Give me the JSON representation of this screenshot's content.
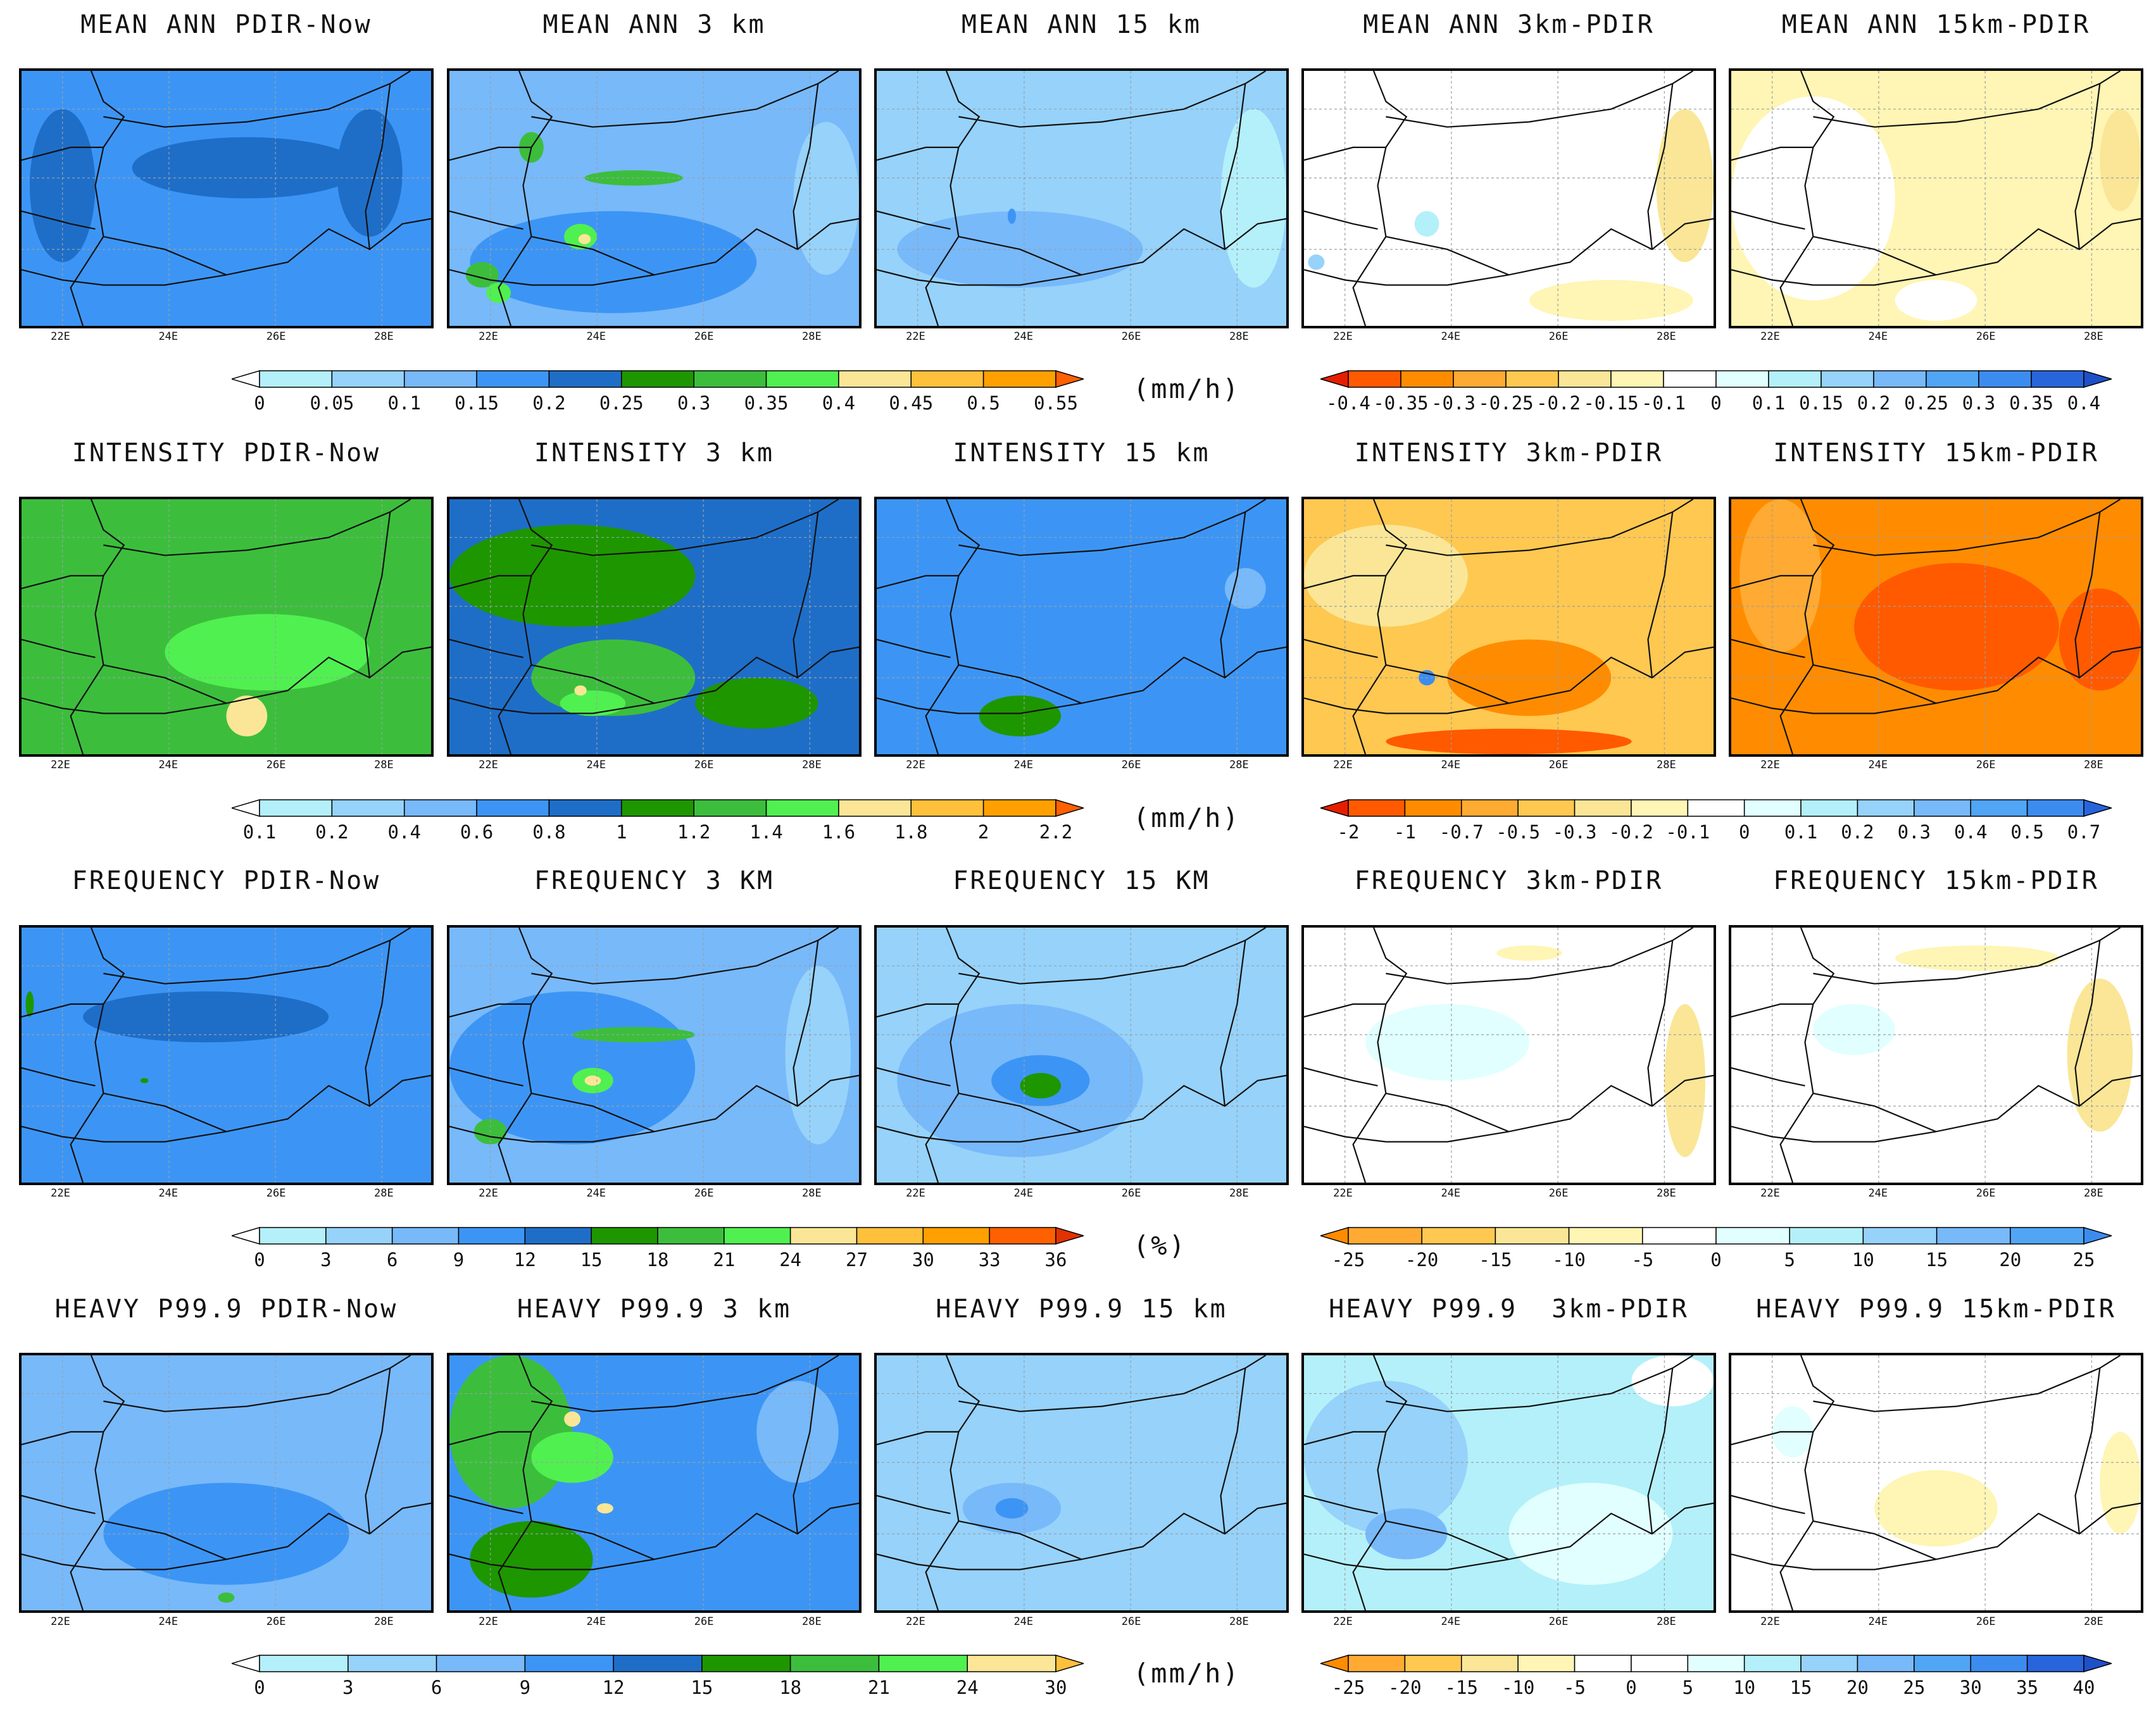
{
  "longitude_ticks": [
    "22E",
    "24E",
    "26E",
    "28E"
  ],
  "rows": [
    {
      "id": "mean",
      "titles": [
        "MEAN ANN PDIR-Now",
        "MEAN ANN 3 km",
        "MEAN ANN 15 km",
        "MEAN ANN 3km-PDIR",
        "MEAN ANN 15km-PDIR"
      ],
      "seq_scale": {
        "labels": [
          "0",
          "0.05",
          "0.1",
          "0.15",
          "0.2",
          "0.25",
          "0.3",
          "0.35",
          "0.4",
          "0.45",
          "0.5",
          "0.55"
        ],
        "colors": [
          "#ffffff",
          "#b4f0fa",
          "#96d2fa",
          "#78b9fa",
          "#3c95f5",
          "#1e6ec8",
          "#1e9600",
          "#3cbe3c",
          "#50f050",
          "#fae696",
          "#ffc03c",
          "#ffa000",
          "#ff6000"
        ]
      },
      "units": "(mm/h)",
      "diff_scale": {
        "labels": [
          "-0.4",
          "-0.35",
          "-0.3",
          "-0.25",
          "-0.2",
          "-0.15",
          "-0.1",
          "0",
          "0.1",
          "0.15",
          "0.2",
          "0.25",
          "0.3",
          "0.35",
          "0.4"
        ],
        "colors": [
          "#e61e00",
          "#ff5a00",
          "#ff8c00",
          "#ffaa32",
          "#ffc850",
          "#fae696",
          "#fff5b4",
          "#ffffff",
          "#e1ffff",
          "#b4f0fa",
          "#96d2fa",
          "#78b9fa",
          "#50a5f5",
          "#3c8cf0",
          "#2864dc",
          "#1e50c8"
        ]
      }
    },
    {
      "id": "intensity",
      "titles": [
        "INTENSITY PDIR-Now",
        "INTENSITY 3 km",
        "INTENSITY 15 km",
        "INTENSITY 3km-PDIR",
        "INTENSITY 15km-PDIR"
      ],
      "seq_scale": {
        "labels": [
          "0.1",
          "0.2",
          "0.4",
          "0.6",
          "0.8",
          "1",
          "1.2",
          "1.4",
          "1.6",
          "1.8",
          "2",
          "2.2"
        ],
        "colors": [
          "#ffffff",
          "#b4f0fa",
          "#96d2fa",
          "#78b9fa",
          "#3c95f5",
          "#1e6ec8",
          "#1e9600",
          "#3cbe3c",
          "#50f050",
          "#fae696",
          "#ffc03c",
          "#ffa000",
          "#ff6000"
        ]
      },
      "units": "(mm/h)",
      "diff_scale": {
        "labels": [
          "-2",
          "-1",
          "-0.7",
          "-0.5",
          "-0.3",
          "-0.2",
          "-0.1",
          "0",
          "0.1",
          "0.2",
          "0.3",
          "0.4",
          "0.5",
          "0.7"
        ],
        "colors": [
          "#e61e00",
          "#ff5a00",
          "#ff8c00",
          "#ffaa32",
          "#ffc850",
          "#fae696",
          "#fff5b4",
          "#ffffff",
          "#e1ffff",
          "#b4f0fa",
          "#96d2fa",
          "#78b9fa",
          "#50a5f5",
          "#3c8cf0",
          "#2864dc"
        ]
      }
    },
    {
      "id": "frequency",
      "titles": [
        "FREQUENCY PDIR-Now",
        "FREQUENCY 3 KM",
        "FREQUENCY 15 KM",
        "FREQUENCY 3km-PDIR",
        "FREQUENCY 15km-PDIR"
      ],
      "seq_scale": {
        "labels": [
          "0",
          "3",
          "6",
          "9",
          "12",
          "15",
          "18",
          "21",
          "24",
          "27",
          "30",
          "33",
          "36"
        ],
        "colors": [
          "#ffffff",
          "#b4f0fa",
          "#96d2fa",
          "#78b9fa",
          "#3c95f5",
          "#1e6ec8",
          "#1e9600",
          "#3cbe3c",
          "#50f050",
          "#fae696",
          "#ffc03c",
          "#ffa000",
          "#ff6000",
          "#e13200"
        ]
      },
      "units": "(%)",
      "diff_scale": {
        "labels": [
          "-25",
          "-20",
          "-15",
          "-10",
          "-5",
          "0",
          "5",
          "10",
          "15",
          "20",
          "25"
        ],
        "colors": [
          "#ff8c00",
          "#ffaa32",
          "#ffc850",
          "#fae696",
          "#fff5b4",
          "#ffffff",
          "#e1ffff",
          "#b4f0fa",
          "#96d2fa",
          "#78b9fa",
          "#50a5f5",
          "#3c8cf0"
        ]
      }
    },
    {
      "id": "heavy",
      "titles": [
        "HEAVY P99.9 PDIR-Now",
        "HEAVY P99.9 3 km",
        "HEAVY P99.9 15 km",
        "HEAVY P99.9  3km-PDIR",
        "HEAVY P99.9 15km-PDIR"
      ],
      "seq_scale": {
        "labels": [
          "0",
          "3",
          "6",
          "9",
          "12",
          "15",
          "18",
          "21",
          "24",
          "30"
        ],
        "colors": [
          "#ffffff",
          "#b4f0fa",
          "#96d2fa",
          "#78b9fa",
          "#3c95f5",
          "#1e6ec8",
          "#1e9600",
          "#3cbe3c",
          "#50f050",
          "#fae696",
          "#ffc03c"
        ]
      },
      "units": "(mm/h)",
      "diff_scale": {
        "labels": [
          "-25",
          "-20",
          "-15",
          "-10",
          "-5",
          "0",
          "5",
          "10",
          "15",
          "20",
          "25",
          "30",
          "35",
          "40"
        ],
        "colors": [
          "#ff8c00",
          "#ffaa32",
          "#ffc850",
          "#fae696",
          "#fff5b4",
          "#ffffff",
          "#ffffff",
          "#e1ffff",
          "#b4f0fa",
          "#96d2fa",
          "#78b9fa",
          "#50a5f5",
          "#3c8cf0",
          "#2864dc",
          "#1e50c8"
        ]
      }
    }
  ],
  "panel_fields": [
    [
      {
        "base": "#3c95f5",
        "blobs": [
          [
            "#1e6ec8",
            0.55,
            0.38,
            0.28,
            0.12
          ],
          [
            "#1e6ec8",
            0.1,
            0.45,
            0.08,
            0.3
          ],
          [
            "#1e6ec8",
            0.85,
            0.4,
            0.08,
            0.25
          ]
        ]
      },
      {
        "base": "#78b9fa",
        "blobs": [
          [
            "#3c95f5",
            0.4,
            0.75,
            0.35,
            0.2
          ],
          [
            "#3cbe3c",
            0.45,
            0.42,
            0.12,
            0.03
          ],
          [
            "#50f050",
            0.32,
            0.65,
            0.04,
            0.05
          ],
          [
            "#fae696",
            0.33,
            0.66,
            0.015,
            0.02
          ],
          [
            "#3cbe3c",
            0.08,
            0.8,
            0.04,
            0.05
          ],
          [
            "#50f050",
            0.12,
            0.87,
            0.03,
            0.04
          ],
          [
            "#3cbe3c",
            0.2,
            0.3,
            0.03,
            0.06
          ],
          [
            "#96d2fa",
            0.92,
            0.5,
            0.08,
            0.3
          ]
        ]
      },
      {
        "base": "#96d2fa",
        "blobs": [
          [
            "#78b9fa",
            0.35,
            0.7,
            0.3,
            0.15
          ],
          [
            "#b4f0fa",
            0.92,
            0.5,
            0.08,
            0.35
          ],
          [
            "#3c95f5",
            0.33,
            0.57,
            0.01,
            0.03
          ]
        ]
      },
      {
        "base": "#ffffff",
        "blobs": [
          [
            "#fae696",
            0.93,
            0.45,
            0.07,
            0.3
          ],
          [
            "#fff5b4",
            0.75,
            0.9,
            0.2,
            0.08
          ],
          [
            "#b4f0fa",
            0.3,
            0.6,
            0.03,
            0.05
          ],
          [
            "#96d2fa",
            0.03,
            0.75,
            0.02,
            0.03
          ]
        ]
      },
      {
        "base": "#fff5b4",
        "blobs": [
          [
            "#ffffff",
            0.2,
            0.5,
            0.2,
            0.4
          ],
          [
            "#ffffff",
            0.5,
            0.9,
            0.1,
            0.08
          ],
          [
            "#fae696",
            0.95,
            0.35,
            0.05,
            0.2
          ]
        ]
      }
    ],
    [
      {
        "base": "#3cbe3c",
        "blobs": [
          [
            "#50f050",
            0.6,
            0.6,
            0.25,
            0.15
          ],
          [
            "#fae696",
            0.55,
            0.85,
            0.05,
            0.08
          ]
        ]
      },
      {
        "base": "#1e6ec8",
        "blobs": [
          [
            "#1e9600",
            0.3,
            0.3,
            0.3,
            0.2
          ],
          [
            "#3cbe3c",
            0.4,
            0.7,
            0.2,
            0.15
          ],
          [
            "#50f050",
            0.35,
            0.8,
            0.08,
            0.05
          ],
          [
            "#fae696",
            0.32,
            0.75,
            0.015,
            0.02
          ],
          [
            "#1e9600",
            0.75,
            0.8,
            0.15,
            0.1
          ]
        ]
      },
      {
        "base": "#3c95f5",
        "blobs": [
          [
            "#1e9600",
            0.35,
            0.85,
            0.1,
            0.08
          ],
          [
            "#78b9fa",
            0.9,
            0.35,
            0.05,
            0.08
          ]
        ]
      },
      {
        "base": "#ffc850",
        "blobs": [
          [
            "#fae696",
            0.2,
            0.3,
            0.2,
            0.2
          ],
          [
            "#ff8c00",
            0.55,
            0.7,
            0.2,
            0.15
          ],
          [
            "#ff5a00",
            0.5,
            0.95,
            0.3,
            0.05
          ],
          [
            "#3c8cf0",
            0.3,
            0.7,
            0.02,
            0.03
          ]
        ]
      },
      {
        "base": "#ff8c00",
        "blobs": [
          [
            "#ff5a00",
            0.55,
            0.5,
            0.25,
            0.25
          ],
          [
            "#ff5a00",
            0.9,
            0.55,
            0.1,
            0.2
          ],
          [
            "#ffaa32",
            0.12,
            0.3,
            0.1,
            0.3
          ]
        ]
      }
    ],
    [
      {
        "base": "#3c95f5",
        "blobs": [
          [
            "#1e6ec8",
            0.45,
            0.35,
            0.3,
            0.1
          ],
          [
            "#1e9600",
            0.02,
            0.3,
            0.01,
            0.05
          ],
          [
            "#1e9600",
            0.3,
            0.6,
            0.01,
            0.01
          ]
        ]
      },
      {
        "base": "#78b9fa",
        "blobs": [
          [
            "#3c95f5",
            0.3,
            0.55,
            0.3,
            0.3
          ],
          [
            "#3cbe3c",
            0.45,
            0.42,
            0.15,
            0.03
          ],
          [
            "#50f050",
            0.35,
            0.6,
            0.05,
            0.05
          ],
          [
            "#fae696",
            0.35,
            0.6,
            0.02,
            0.02
          ],
          [
            "#3cbe3c",
            0.1,
            0.8,
            0.04,
            0.05
          ],
          [
            "#96d2fa",
            0.9,
            0.5,
            0.08,
            0.35
          ]
        ]
      },
      {
        "base": "#96d2fa",
        "blobs": [
          [
            "#78b9fa",
            0.35,
            0.6,
            0.3,
            0.3
          ],
          [
            "#3c95f5",
            0.4,
            0.6,
            0.12,
            0.1
          ],
          [
            "#1e9600",
            0.4,
            0.62,
            0.05,
            0.05
          ]
        ]
      },
      {
        "base": "#ffffff",
        "blobs": [
          [
            "#e1ffff",
            0.35,
            0.45,
            0.2,
            0.15
          ],
          [
            "#fae696",
            0.93,
            0.6,
            0.05,
            0.3
          ],
          [
            "#fff5b4",
            0.55,
            0.1,
            0.08,
            0.03
          ]
        ]
      },
      {
        "base": "#ffffff",
        "blobs": [
          [
            "#fff5b4",
            0.6,
            0.12,
            0.2,
            0.05
          ],
          [
            "#fae696",
            0.9,
            0.5,
            0.08,
            0.3
          ],
          [
            "#e1ffff",
            0.3,
            0.4,
            0.1,
            0.1
          ]
        ]
      }
    ],
    [
      {
        "base": "#78b9fa",
        "blobs": [
          [
            "#3c95f5",
            0.5,
            0.7,
            0.3,
            0.2
          ],
          [
            "#3cbe3c",
            0.5,
            0.95,
            0.02,
            0.02
          ]
        ]
      },
      {
        "base": "#3c95f5",
        "blobs": [
          [
            "#3cbe3c",
            0.15,
            0.3,
            0.15,
            0.3
          ],
          [
            "#50f050",
            0.3,
            0.4,
            0.1,
            0.1
          ],
          [
            "#fae696",
            0.3,
            0.25,
            0.02,
            0.03
          ],
          [
            "#fae696",
            0.38,
            0.6,
            0.02,
            0.02
          ],
          [
            "#1e9600",
            0.2,
            0.8,
            0.15,
            0.15
          ],
          [
            "#78b9fa",
            0.85,
            0.3,
            0.1,
            0.2
          ]
        ]
      },
      {
        "base": "#96d2fa",
        "blobs": [
          [
            "#78b9fa",
            0.33,
            0.6,
            0.12,
            0.1
          ],
          [
            "#3c95f5",
            0.33,
            0.6,
            0.04,
            0.04
          ]
        ]
      },
      {
        "base": "#b4f0fa",
        "blobs": [
          [
            "#96d2fa",
            0.2,
            0.4,
            0.2,
            0.3
          ],
          [
            "#78b9fa",
            0.25,
            0.7,
            0.1,
            0.1
          ],
          [
            "#e1ffff",
            0.7,
            0.7,
            0.2,
            0.2
          ],
          [
            "#ffffff",
            0.9,
            0.1,
            0.1,
            0.1
          ]
        ]
      },
      {
        "base": "#ffffff",
        "blobs": [
          [
            "#fff5b4",
            0.5,
            0.6,
            0.15,
            0.15
          ],
          [
            "#fff5b4",
            0.95,
            0.5,
            0.05,
            0.2
          ],
          [
            "#e1ffff",
            0.15,
            0.3,
            0.05,
            0.1
          ]
        ]
      }
    ]
  ]
}
